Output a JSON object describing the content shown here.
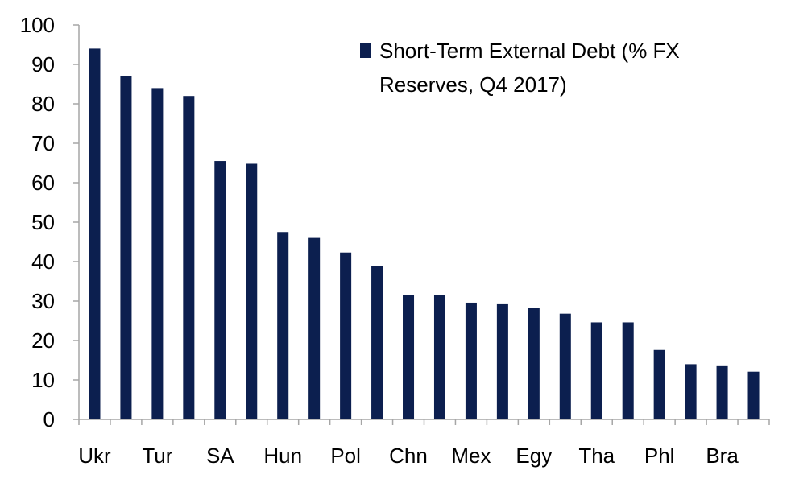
{
  "chart_data": {
    "type": "bar",
    "title": "",
    "xlabel": "",
    "ylabel": "",
    "ylim": [
      0,
      100
    ],
    "yticks": [
      0,
      10,
      20,
      30,
      40,
      50,
      60,
      70,
      80,
      90,
      100
    ],
    "categories": [
      "Ukr",
      "",
      "Tur",
      "",
      "SA",
      "",
      "Hun",
      "",
      "Pol",
      "",
      "Chn",
      "",
      "Mex",
      "",
      "Egy",
      "",
      "Tha",
      "",
      "Phl",
      "",
      "Bra",
      ""
    ],
    "series": [
      {
        "name": "Short-Term External Debt (% FX Reserves, Q4 2017)",
        "color": "#0c1f4f",
        "values": [
          94,
          87,
          84,
          82,
          65.5,
          64.8,
          47.5,
          46,
          42.3,
          38.8,
          31.5,
          31.5,
          29.6,
          29.2,
          28.2,
          26.8,
          24.6,
          24.6,
          17.6,
          14,
          13.5,
          12.1
        ]
      }
    ],
    "legend": {
      "position": "top-right",
      "lines": [
        "Short-Term External Debt (% FX",
        "Reserves, Q4 2017)"
      ]
    },
    "grid": false
  }
}
